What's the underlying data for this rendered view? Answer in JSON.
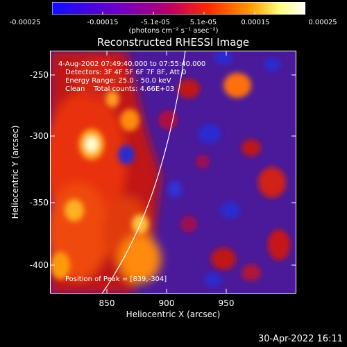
{
  "colorbar": {
    "ticks": [
      "-0.00025",
      "-0.00015",
      "-5.1e-05",
      "5.1e-05",
      "0.00015",
      "0.00025"
    ],
    "unit_label": "(photons cm⁻² s⁻¹ asec⁻²)",
    "colors": [
      "#1010ff",
      "#6a00c8",
      "#b00070",
      "#ff2a00",
      "#ff9a00",
      "#ffff80",
      "#ffffff"
    ]
  },
  "title": "Reconstructed RHESSI Image",
  "annotations": {
    "time_range": "4-Aug-2002 07:49:40.000 to 07:55:40.000",
    "detectors": "Detectors: 3F 4F 5F 6F 7F 8F, Att 0",
    "energy_range": "Energy Range: 25.0 - 50.0 keV",
    "clean_counts": "Clean    Total counts: 4.66E+03",
    "peak": "Position of Peak = [839,-304]"
  },
  "axes": {
    "xlabel": "Heliocentric X (arcsec)",
    "ylabel": "Heliocentric Y (arcsec)",
    "xticks": [
      "850",
      "900",
      "950"
    ],
    "yticks": [
      "-250",
      "-300",
      "-350",
      "-400"
    ]
  },
  "timestamp": "30-Apr-2022 16:11"
}
